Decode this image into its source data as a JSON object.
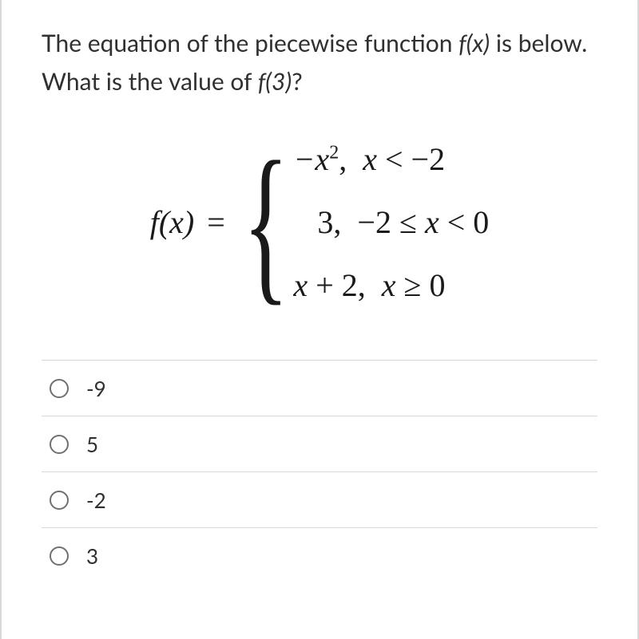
{
  "question": {
    "prefix": "The equation of the piecewise function ",
    "fx": "f(x)",
    "middle": " is below. What is the value of ",
    "f3": "f(3)",
    "suffix": "?"
  },
  "equation": {
    "lhs": "f(x)",
    "eq": "=",
    "pieces": [
      {
        "expr_html": "&minus;<span class='x'>x</span><sup>2</sup><span class='num'>,</span>&nbsp;&nbsp;<span class='x'>x</span> <span class='num'>&lt; &minus;2</span>"
      },
      {
        "expr_html": "&nbsp;&nbsp;&nbsp;<span class='num'>3,</span>&nbsp;&nbsp;<span class='num'>&minus;2 &le;</span> <span class='x'>x</span> <span class='num'>&lt; 0</span>"
      },
      {
        "expr_html": "<span class='x'>x</span> <span class='num'>+ 2,</span>&nbsp;&nbsp;<span class='x'>x</span> <span class='num'>&ge; 0</span>"
      }
    ]
  },
  "options": [
    {
      "label": "-9"
    },
    {
      "label": "5"
    },
    {
      "label": "-2"
    },
    {
      "label": "3"
    }
  ],
  "styles": {
    "text_color": "#303030",
    "border_color": "#d8d8d8",
    "radio_border": "#707070",
    "question_fontsize": 30,
    "equation_fontsize": 40,
    "option_fontsize": 26
  }
}
